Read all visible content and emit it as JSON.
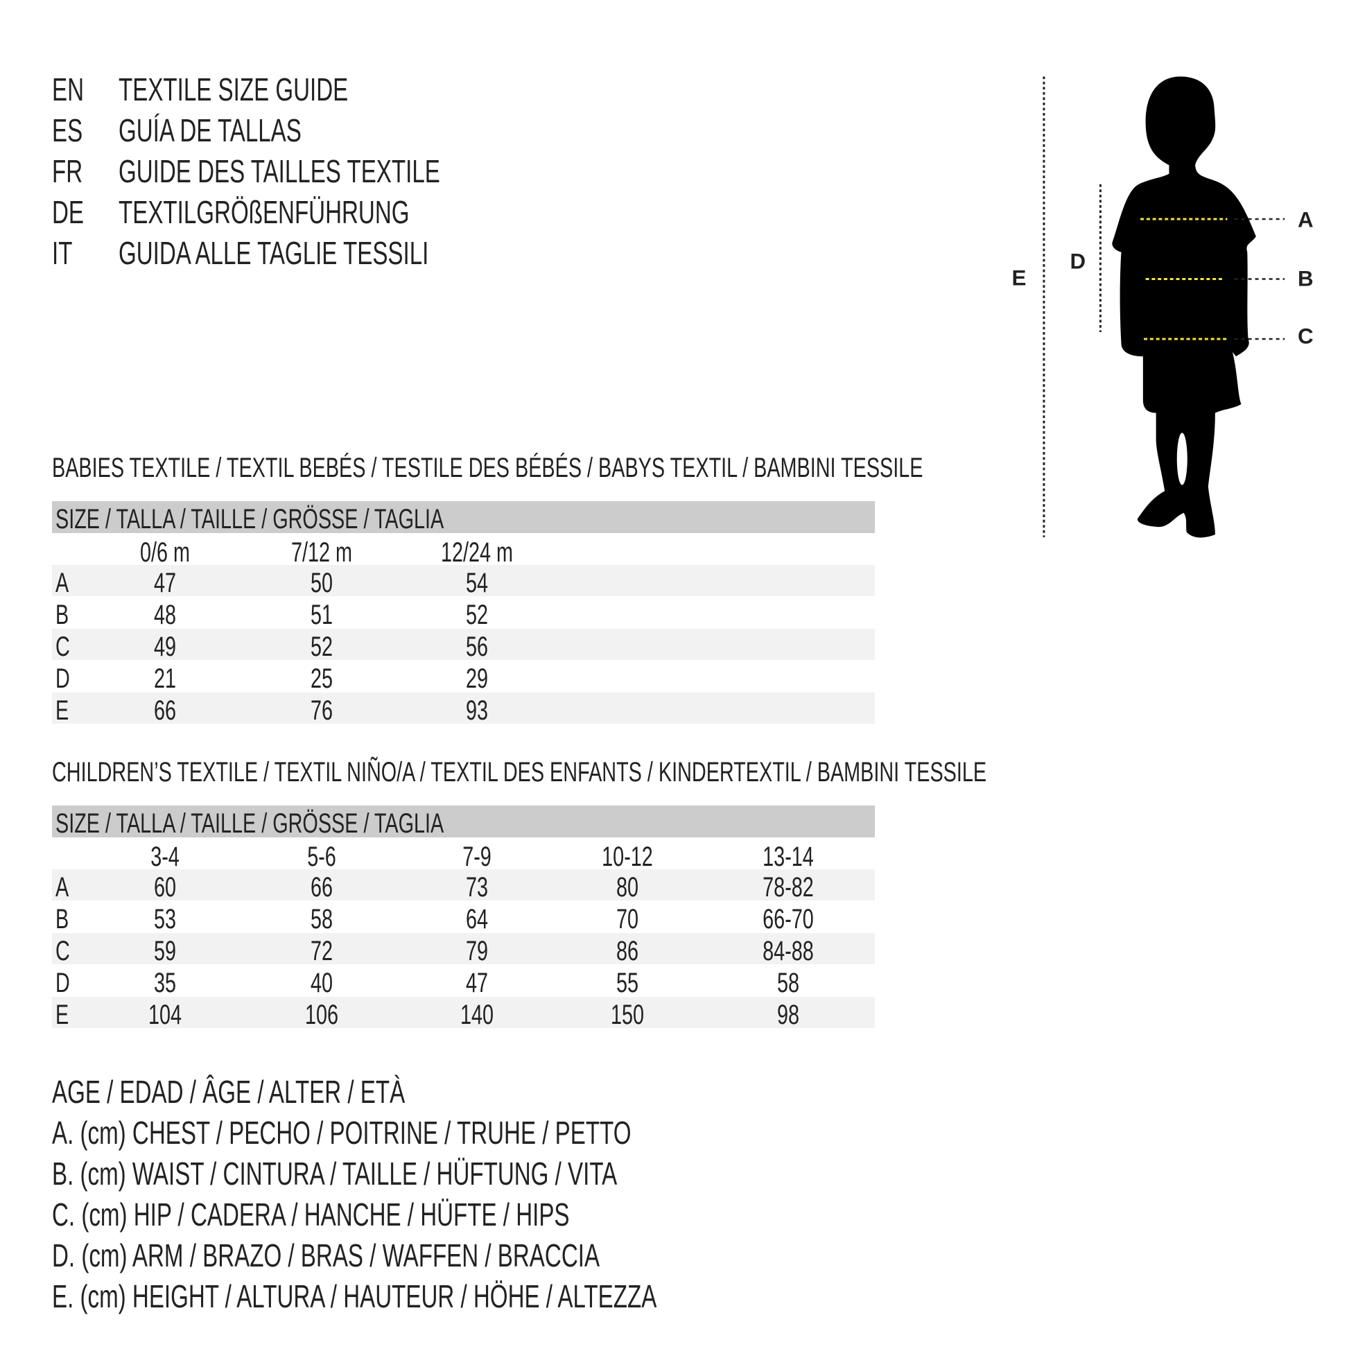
{
  "titles": [
    {
      "code": "EN",
      "text": "TEXTILE SIZE GUIDE"
    },
    {
      "code": "ES",
      "text": "GUÍA DE TALLAS"
    },
    {
      "code": "FR",
      "text": "GUIDE DES TAILLES TEXTILE"
    },
    {
      "code": "DE",
      "text": "TEXTILGRÖßENFÜHRUNG"
    },
    {
      "code": "IT",
      "text": "GUIDA ALLE TAGLIE TESSILI"
    }
  ],
  "figure": {
    "labels": {
      "A": "A",
      "B": "B",
      "C": "C",
      "D": "D",
      "E": "E"
    },
    "measure_line_color": "#f2e33a",
    "silhouette_color": "#000000"
  },
  "tables": [
    {
      "heading": "BABIES TEXTILE / TEXTIL BEBÉS / TESTILE DES BÉBÉS / BABYS TEXTIL / BAMBINI TESSILE",
      "size_label": "SIZE / TALLA / TAILLE / GRÖSSE / TAGLIA",
      "columns": [
        "0/6 m",
        "7/12 m",
        "12/24 m"
      ],
      "rows": [
        {
          "label": "A",
          "values": [
            "47",
            "50",
            "54"
          ]
        },
        {
          "label": "B",
          "values": [
            "48",
            "51",
            "52"
          ]
        },
        {
          "label": "C",
          "values": [
            "49",
            "52",
            "56"
          ]
        },
        {
          "label": "D",
          "values": [
            "21",
            "25",
            "29"
          ]
        },
        {
          "label": "E",
          "values": [
            "66",
            "76",
            "93"
          ]
        }
      ]
    },
    {
      "heading": "CHILDREN’S TEXTILE / TEXTIL NIÑO/A / TEXTIL DES ENFANTS / KINDERTEXTIL / BAMBINI TESSILE",
      "size_label": "SIZE / TALLA / TAILLE / GRÖSSE / TAGLIA",
      "columns": [
        "3-4",
        "5-6",
        "7-9",
        "10-12",
        "13-14"
      ],
      "rows": [
        {
          "label": "A",
          "values": [
            "60",
            "66",
            "73",
            "80",
            "78-82"
          ]
        },
        {
          "label": "B",
          "values": [
            "53",
            "58",
            "64",
            "70",
            "66-70"
          ]
        },
        {
          "label": "C",
          "values": [
            "59",
            "72",
            "79",
            "86",
            "84-88"
          ]
        },
        {
          "label": "D",
          "values": [
            "35",
            "40",
            "47",
            "55",
            "58"
          ]
        },
        {
          "label": "E",
          "values": [
            "104",
            "106",
            "140",
            "150",
            "98"
          ]
        }
      ]
    }
  ],
  "legend": [
    "AGE / EDAD / ÂGE / ALTER / ETÀ",
    "A. (cm) CHEST / PECHO / POITRINE / TRUHE / PETTO",
    "B. (cm) WAIST / CINTURA / TAILLE / HÜFTUNG / VITA",
    "C. (cm) HIP / CADERA / HANCHE / HÜFTE / HIPS",
    "D. (cm) ARM / BRAZO / BRAS / WAFFEN / BRACCIA",
    "E. (cm) HEIGHT / ALTURA / HAUTEUR / HÖHE / ALTEZZA"
  ]
}
